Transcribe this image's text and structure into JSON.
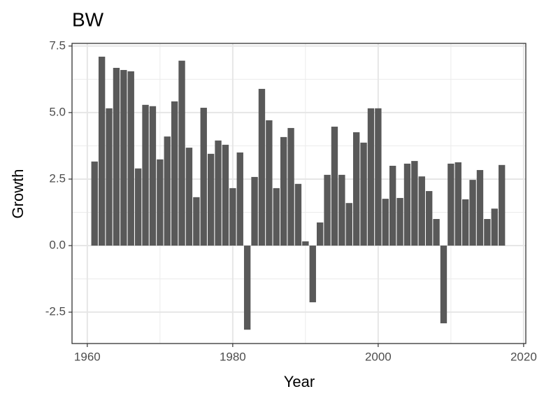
{
  "chart_data": {
    "type": "bar",
    "title": "BW",
    "x_label": "Year",
    "y_label": "Growth",
    "x": [
      1961,
      1962,
      1963,
      1964,
      1965,
      1966,
      1967,
      1968,
      1969,
      1970,
      1971,
      1972,
      1973,
      1974,
      1975,
      1976,
      1977,
      1978,
      1979,
      1980,
      1981,
      1982,
      1983,
      1984,
      1985,
      1986,
      1987,
      1988,
      1989,
      1990,
      1991,
      1992,
      1993,
      1994,
      1995,
      1996,
      1997,
      1998,
      1999,
      2000,
      2001,
      2002,
      2003,
      2004,
      2005,
      2006,
      2007,
      2008,
      2009,
      2010,
      2011,
      2012,
      2013,
      2014,
      2015,
      2016,
      2017
    ],
    "values": [
      3.16,
      7.1,
      5.16,
      6.68,
      6.6,
      6.55,
      2.9,
      5.29,
      5.24,
      3.24,
      4.1,
      5.42,
      6.95,
      3.68,
      1.82,
      5.18,
      3.45,
      3.95,
      3.79,
      2.16,
      3.5,
      -3.16,
      2.58,
      5.89,
      4.71,
      2.16,
      4.08,
      4.42,
      2.32,
      0.16,
      -2.13,
      0.87,
      2.66,
      4.47,
      2.66,
      1.6,
      4.26,
      3.87,
      5.16,
      5.16,
      1.76,
      3.0,
      1.79,
      3.08,
      3.18,
      2.6,
      2.05,
      1.0,
      -2.92,
      3.08,
      3.13,
      1.74,
      2.47,
      2.84,
      1.0,
      1.39,
      3.03
    ],
    "color": "#595959",
    "xlim": [
      1957.9,
      2020.3
    ],
    "xticks": [
      1960,
      1980,
      2000,
      2020
    ],
    "ylim": [
      -3.68,
      7.6
    ],
    "yticks": [
      7.5,
      {
        "value": 5,
        "label": "5.0"
      },
      2.5,
      {
        "value": 0,
        "label": "0.0"
      },
      -2.5
    ],
    "grid": true,
    "minor_grid": true
  }
}
